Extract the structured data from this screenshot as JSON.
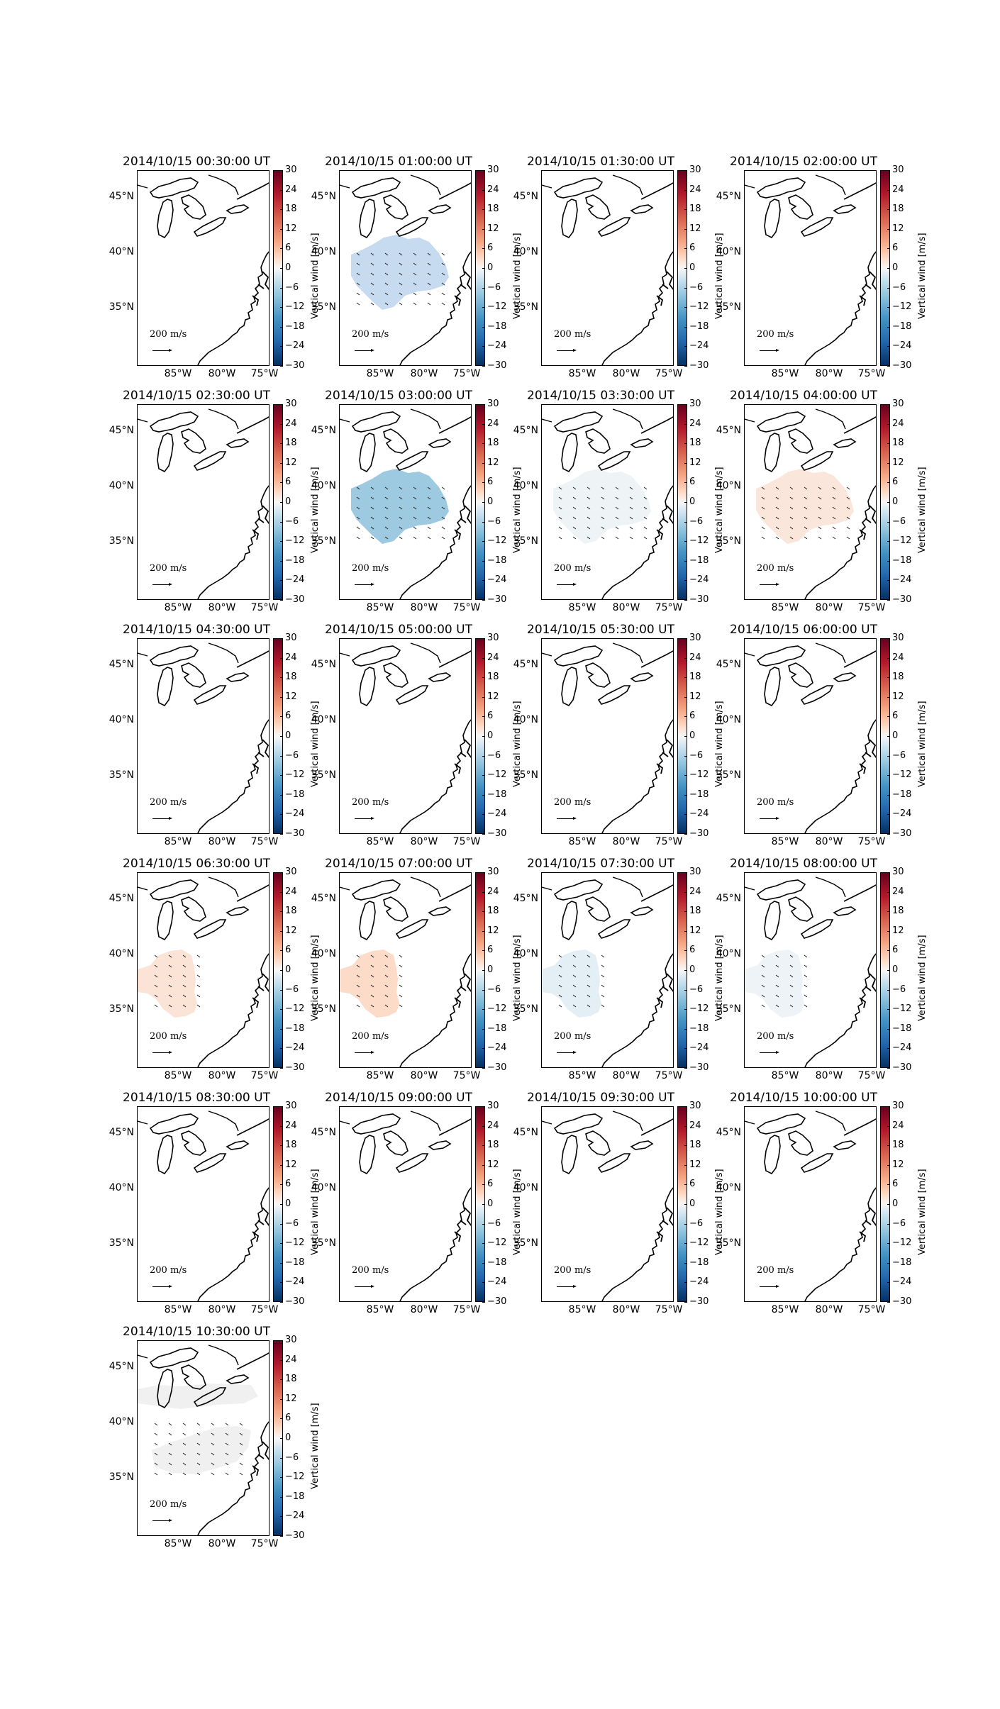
{
  "figure": {
    "colorbar": {
      "label": "Vertical wind [m/s]",
      "ticks": [
        "30",
        "24",
        "18",
        "12",
        "6",
        "0",
        "−6",
        "−12",
        "−18",
        "−24",
        "−30"
      ],
      "range": [
        -30,
        30
      ],
      "colormap": "RdBu_r"
    },
    "lat_labels": [
      "45°N",
      "40°N",
      "35°N"
    ],
    "lon_labels": [
      "85°W",
      "80°W",
      "75°W"
    ],
    "scale_label": "200 m/s",
    "colors": {
      "coast": "#000000",
      "strong_negative": "#9ecae1",
      "moderate_negative": "#c6dbef",
      "weak_negative": "#e8f0f6",
      "near_zero": "#f2f2f2",
      "weak_positive": "#fbe6dc",
      "moderate_positive": "#fde0d0"
    },
    "panels": [
      {
        "title": "2014/10/15 00:30:00 UT",
        "fill": "none",
        "fill_color": ""
      },
      {
        "title": "2014/10/15 01:00:00 UT",
        "fill": "region",
        "fill_color": "#c6dbef"
      },
      {
        "title": "2014/10/15 01:30:00 UT",
        "fill": "none",
        "fill_color": ""
      },
      {
        "title": "2014/10/15 02:00:00 UT",
        "fill": "none",
        "fill_color": ""
      },
      {
        "title": "2014/10/15 02:30:00 UT",
        "fill": "none",
        "fill_color": ""
      },
      {
        "title": "2014/10/15 03:00:00 UT",
        "fill": "region",
        "fill_color": "#9ecae1"
      },
      {
        "title": "2014/10/15 03:30:00 UT",
        "fill": "region",
        "fill_color": "#eef3f6"
      },
      {
        "title": "2014/10/15 04:00:00 UT",
        "fill": "region",
        "fill_color": "#fbe6dc"
      },
      {
        "title": "2014/10/15 04:30:00 UT",
        "fill": "none",
        "fill_color": ""
      },
      {
        "title": "2014/10/15 05:00:00 UT",
        "fill": "none",
        "fill_color": ""
      },
      {
        "title": "2014/10/15 05:30:00 UT",
        "fill": "none",
        "fill_color": ""
      },
      {
        "title": "2014/10/15 06:00:00 UT",
        "fill": "none",
        "fill_color": ""
      },
      {
        "title": "2014/10/15 06:30:00 UT",
        "fill": "west",
        "fill_color": "#fbe3d6"
      },
      {
        "title": "2014/10/15 07:00:00 UT",
        "fill": "west",
        "fill_color": "#fcdcc8"
      },
      {
        "title": "2014/10/15 07:30:00 UT",
        "fill": "west",
        "fill_color": "#e4eef5"
      },
      {
        "title": "2014/10/15 08:00:00 UT",
        "fill": "west",
        "fill_color": "#edf3f7"
      },
      {
        "title": "2014/10/15 08:30:00 UT",
        "fill": "none",
        "fill_color": ""
      },
      {
        "title": "2014/10/15 09:00:00 UT",
        "fill": "none",
        "fill_color": ""
      },
      {
        "title": "2014/10/15 09:30:00 UT",
        "fill": "none",
        "fill_color": ""
      },
      {
        "title": "2014/10/15 10:00:00 UT",
        "fill": "none",
        "fill_color": ""
      },
      {
        "title": "2014/10/15 10:30:00 UT",
        "fill": "split",
        "fill_color": "#f0f0f0"
      }
    ]
  }
}
